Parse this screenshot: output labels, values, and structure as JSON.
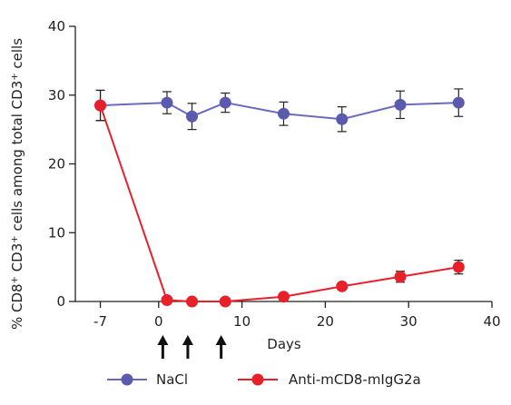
{
  "chart_data": {
    "type": "line",
    "xlabel": "Days",
    "ylabel": {
      "base": "% CD8",
      "sup1": "+",
      "mid": " CD3",
      "sup2": "+",
      "tail": " cells among total CD3",
      "sup3": "+",
      "end": " cells"
    },
    "xlim": [
      -10,
      40
    ],
    "ylim": [
      0,
      40
    ],
    "x_ticks": [
      -7,
      0,
      10,
      20,
      30,
      40
    ],
    "y_ticks": [
      0,
      10,
      20,
      30,
      40
    ],
    "grid": false,
    "legend_position": "bottom",
    "injection_arrow_days": [
      0.5,
      3.5,
      7.5
    ],
    "series": [
      {
        "name": "NaCl",
        "color": "#5a5aae",
        "line_color": "#6b6bbd",
        "x": [
          -7,
          1,
          4,
          8,
          15,
          22,
          29,
          36
        ],
        "y": [
          28.5,
          28.9,
          26.9,
          28.9,
          27.3,
          26.5,
          28.6,
          28.9
        ],
        "err": [
          2.2,
          1.6,
          1.9,
          1.4,
          1.7,
          1.8,
          2.0,
          2.0
        ]
      },
      {
        "name": "Anti-mCD8-mIgG2a",
        "color": "#e8202a",
        "line_color": "#e8202a",
        "x": [
          -7,
          1,
          4,
          8,
          15,
          22,
          29,
          36
        ],
        "y": [
          28.5,
          0.2,
          0.0,
          0.0,
          0.7,
          2.2,
          3.6,
          5.0
        ],
        "err": [
          2.2,
          0.3,
          0.2,
          0.2,
          0.3,
          0.4,
          0.8,
          1.0
        ]
      }
    ]
  }
}
